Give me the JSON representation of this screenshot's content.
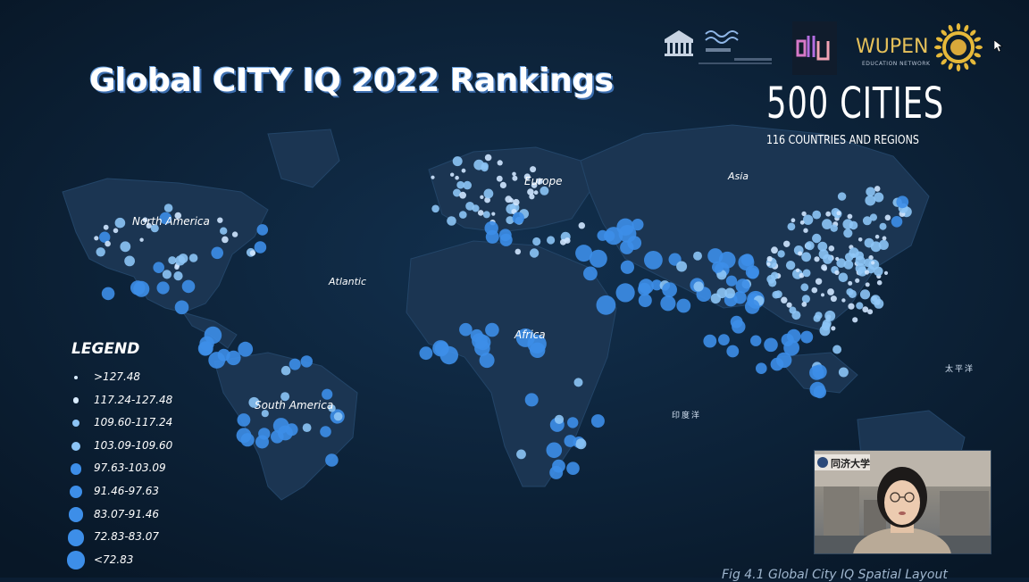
{
  "slide": {
    "title": "Global CITY IQ 2022 Rankings",
    "headline_count": "500 CITIES",
    "subheadline": "116 COUNTRIES AND REGIONS",
    "caption": "Fig 4.1 Global City IQ Spatial Layout"
  },
  "map_labels": {
    "north_america": "North America",
    "south_america": "South America",
    "europe": "Europe",
    "asia": "Asia",
    "africa": "Africa",
    "atlantic": "Atlantic",
    "pacific_cn": "太平洋",
    "indian_ocean_cn": "印度洋"
  },
  "legend": {
    "title": "LEGEND",
    "items": [
      {
        "label": ">127.48",
        "size_rank": 1
      },
      {
        "label": "117.24-127.48",
        "size_rank": 2
      },
      {
        "label": "109.60-117.24",
        "size_rank": 3
      },
      {
        "label": "103.09-109.60",
        "size_rank": 4
      },
      {
        "label": "97.63-103.09",
        "size_rank": 5
      },
      {
        "label": "91.46-97.63",
        "size_rank": 6
      },
      {
        "label": "83.07-91.46",
        "size_rank": 7
      },
      {
        "label": "72.83-83.07",
        "size_rank": 8
      },
      {
        "label": "<72.83",
        "size_rank": 9
      }
    ]
  },
  "logos": {
    "wupen_name": "WUPEN",
    "wupen_sub": "EDUCATION NETWORK",
    "university_badge": "同济大学"
  },
  "colors": {
    "background": "#0b1e33",
    "land": "#1b3552",
    "dot": "#3d8ee8",
    "dot_light": "#8cc4f5",
    "wupen_gold": "#e6c15a"
  }
}
